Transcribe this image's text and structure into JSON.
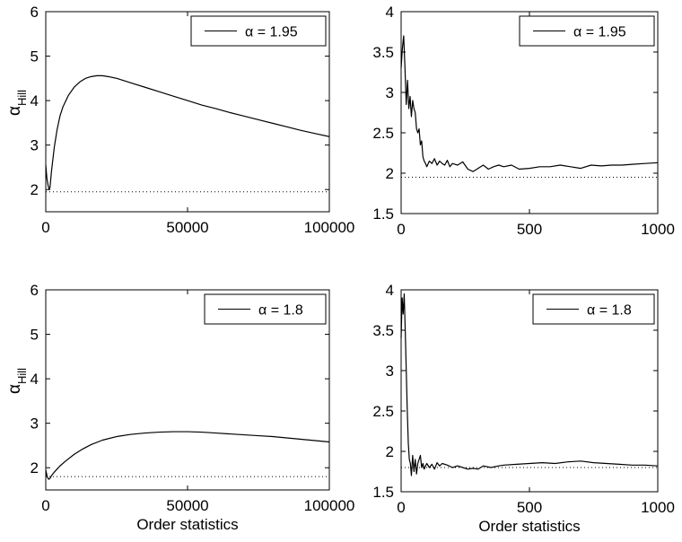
{
  "chart_data": [
    {
      "type": "line",
      "ylabel": "α",
      "ylabel_sub": "Hill",
      "xlabel": "",
      "xlim": [
        0,
        100000
      ],
      "ylim": [
        1.5,
        6
      ],
      "xticks": [
        "0",
        "50000",
        "100000"
      ],
      "yticks": [
        "2",
        "3",
        "4",
        "5",
        "6"
      ],
      "legend_position": "top-right",
      "series": [
        {
          "name": "α = 1.95",
          "x": [
            0,
            400,
            800,
            1200,
            1500,
            2000,
            3000,
            4000,
            5000,
            6000,
            8000,
            10000,
            12000,
            14000,
            16000,
            18000,
            20000,
            22000,
            25000,
            30000,
            35000,
            40000,
            45000,
            50000,
            55000,
            60000,
            65000,
            70000,
            75000,
            80000,
            85000,
            90000,
            95000,
            100000
          ],
          "y": [
            2.55,
            2.25,
            2.1,
            2.0,
            2.05,
            2.4,
            2.95,
            3.35,
            3.65,
            3.85,
            4.12,
            4.3,
            4.42,
            4.5,
            4.54,
            4.56,
            4.56,
            4.54,
            4.5,
            4.4,
            4.3,
            4.2,
            4.1,
            4.0,
            3.9,
            3.82,
            3.73,
            3.65,
            3.57,
            3.49,
            3.41,
            3.33,
            3.26,
            3.19
          ]
        },
        {
          "name": "",
          "style": "dotted",
          "x": [
            0,
            100000
          ],
          "y": [
            1.95,
            1.95
          ]
        }
      ]
    },
    {
      "type": "line",
      "xlabel": "",
      "ylabel": "",
      "xlim": [
        0,
        1000
      ],
      "ylim": [
        1.5,
        4
      ],
      "xticks": [
        "0",
        "500",
        "1000"
      ],
      "yticks": [
        "1.5",
        "2",
        "2.5",
        "3",
        "3.5",
        "4"
      ],
      "legend_position": "top-right",
      "series": [
        {
          "name": "α = 1.95",
          "x": [
            0,
            5,
            10,
            15,
            20,
            25,
            30,
            35,
            40,
            45,
            50,
            55,
            60,
            65,
            70,
            75,
            80,
            85,
            90,
            95,
            100,
            110,
            120,
            130,
            140,
            150,
            160,
            170,
            180,
            190,
            200,
            220,
            240,
            260,
            280,
            300,
            320,
            340,
            360,
            380,
            400,
            430,
            460,
            500,
            540,
            580,
            620,
            660,
            700,
            740,
            780,
            820,
            860,
            900,
            950,
            1000
          ],
          "y": [
            3.3,
            3.55,
            3.7,
            3.3,
            2.85,
            3.15,
            2.8,
            2.95,
            2.7,
            2.9,
            2.8,
            2.75,
            2.55,
            2.5,
            2.55,
            2.35,
            2.4,
            2.2,
            2.15,
            2.12,
            2.08,
            2.15,
            2.12,
            2.18,
            2.1,
            2.15,
            2.12,
            2.1,
            2.16,
            2.08,
            2.12,
            2.1,
            2.14,
            2.05,
            2.02,
            2.06,
            2.1,
            2.05,
            2.08,
            2.1,
            2.08,
            2.1,
            2.05,
            2.06,
            2.08,
            2.08,
            2.1,
            2.08,
            2.06,
            2.1,
            2.09,
            2.1,
            2.1,
            2.11,
            2.12,
            2.13
          ]
        },
        {
          "name": "",
          "style": "dotted",
          "x": [
            0,
            1000
          ],
          "y": [
            1.95,
            1.95
          ]
        }
      ]
    },
    {
      "type": "line",
      "ylabel": "α",
      "ylabel_sub": "Hill",
      "xlabel": "Order statistics",
      "xlim": [
        0,
        100000
      ],
      "ylim": [
        1.5,
        6
      ],
      "xticks": [
        "0",
        "50000",
        "100000"
      ],
      "yticks": [
        "2",
        "3",
        "4",
        "5",
        "6"
      ],
      "legend_position": "top-right",
      "series": [
        {
          "name": "α = 1.8",
          "x": [
            0,
            500,
            1000,
            1500,
            2000,
            3000,
            4000,
            5000,
            7000,
            10000,
            13000,
            16000,
            20000,
            25000,
            30000,
            35000,
            40000,
            45000,
            50000,
            55000,
            60000,
            65000,
            70000,
            75000,
            80000,
            85000,
            90000,
            95000,
            100000
          ],
          "y": [
            1.95,
            1.8,
            1.74,
            1.76,
            1.82,
            1.9,
            1.97,
            2.04,
            2.15,
            2.3,
            2.42,
            2.52,
            2.62,
            2.7,
            2.75,
            2.78,
            2.8,
            2.81,
            2.81,
            2.8,
            2.78,
            2.76,
            2.74,
            2.72,
            2.7,
            2.67,
            2.64,
            2.61,
            2.58
          ]
        },
        {
          "name": "",
          "style": "dotted",
          "x": [
            0,
            100000
          ],
          "y": [
            1.8,
            1.8
          ]
        }
      ]
    },
    {
      "type": "line",
      "xlabel": "Order statistics",
      "ylabel": "",
      "xlim": [
        0,
        1000
      ],
      "ylim": [
        1.5,
        4
      ],
      "xticks": [
        "0",
        "500",
        "1000"
      ],
      "yticks": [
        "1.5",
        "2",
        "2.5",
        "3",
        "3.5",
        "4"
      ],
      "legend_position": "top-right",
      "series": [
        {
          "name": "α = 1.8",
          "x": [
            0,
            4,
            8,
            12,
            16,
            20,
            24,
            28,
            32,
            36,
            40,
            45,
            50,
            55,
            60,
            65,
            70,
            75,
            80,
            85,
            90,
            95,
            100,
            110,
            120,
            130,
            140,
            150,
            160,
            180,
            200,
            220,
            240,
            260,
            280,
            300,
            320,
            350,
            380,
            400,
            450,
            500,
            550,
            600,
            650,
            700,
            750,
            800,
            850,
            900,
            950,
            1000
          ],
          "y": [
            3.4,
            3.9,
            3.7,
            3.95,
            3.5,
            3.0,
            2.5,
            2.1,
            1.9,
            1.85,
            1.7,
            1.95,
            1.75,
            1.9,
            1.72,
            1.85,
            1.9,
            1.95,
            1.8,
            1.85,
            1.78,
            1.82,
            1.85,
            1.8,
            1.84,
            1.78,
            1.86,
            1.82,
            1.85,
            1.83,
            1.8,
            1.82,
            1.8,
            1.78,
            1.79,
            1.78,
            1.82,
            1.8,
            1.82,
            1.83,
            1.84,
            1.85,
            1.86,
            1.85,
            1.87,
            1.88,
            1.86,
            1.85,
            1.84,
            1.83,
            1.83,
            1.82
          ]
        },
        {
          "name": "",
          "style": "dotted",
          "x": [
            0,
            1000
          ],
          "y": [
            1.8,
            1.8
          ]
        }
      ]
    }
  ]
}
